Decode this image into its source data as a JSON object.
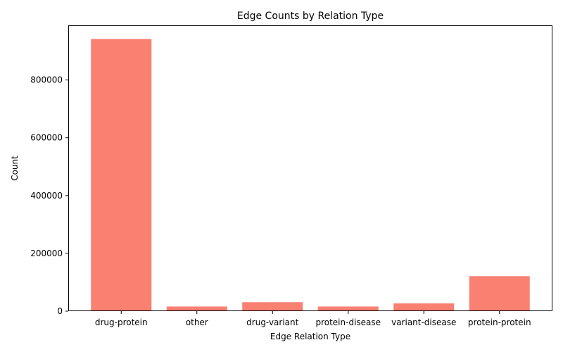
{
  "chart_data": {
    "type": "bar",
    "title": "Edge Counts by Relation Type",
    "xlabel": "Edge Relation Type",
    "ylabel": "Count",
    "categories": [
      "drug-protein",
      "other",
      "drug-variant",
      "protein-disease",
      "variant-disease",
      "protein-protein"
    ],
    "values": [
      942000,
      16000,
      31000,
      16000,
      27000,
      121000
    ],
    "ylim": [
      0,
      989100
    ],
    "yticks": [
      0,
      200000,
      400000,
      600000,
      800000
    ],
    "bar_color": "#fa8072",
    "grid": false,
    "legend": "none"
  }
}
